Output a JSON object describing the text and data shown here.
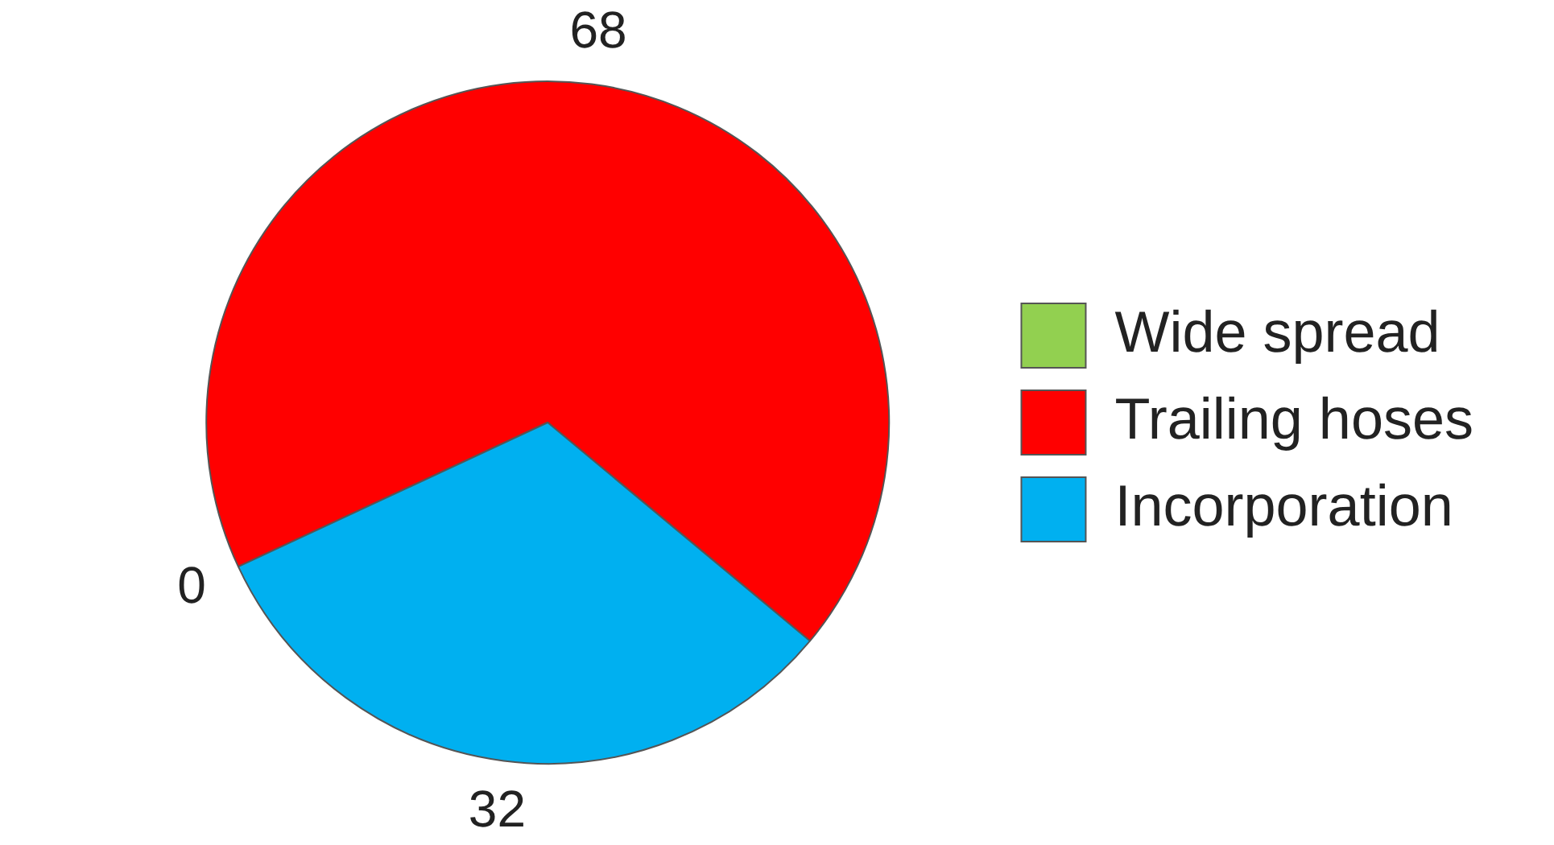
{
  "chart_data": {
    "type": "pie",
    "categories": [
      "Wide spread",
      "Trailing hoses",
      "Incorporation"
    ],
    "values": [
      0,
      68,
      32
    ],
    "colors": [
      "#92d050",
      "#ff0000",
      "#00b0f0"
    ],
    "value_labels": [
      "0",
      "68",
      "32"
    ],
    "legend": "right"
  }
}
